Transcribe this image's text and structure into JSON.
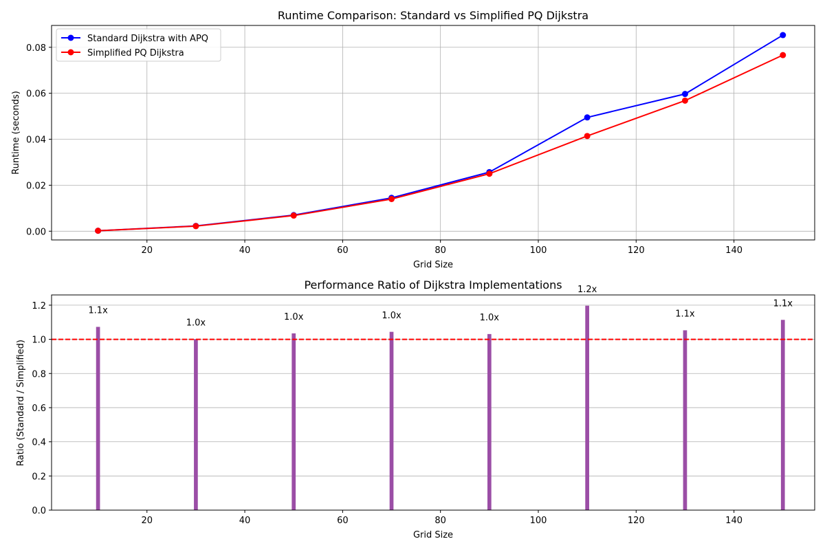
{
  "chart_data": [
    {
      "type": "line",
      "title": "Runtime Comparison: Standard vs Simplified PQ Dijkstra",
      "xlabel": "Grid Size",
      "ylabel": "Runtime (seconds)",
      "x": [
        10,
        30,
        50,
        70,
        90,
        110,
        130,
        150
      ],
      "xlim": [
        0.5,
        156.5
      ],
      "ylim": [
        -0.0038,
        0.0895
      ],
      "xticks": [
        20,
        40,
        60,
        80,
        100,
        120,
        140
      ],
      "yticks": [
        0.0,
        0.02,
        0.04,
        0.06,
        0.08
      ],
      "ytick_labels": [
        "0.00",
        "0.02",
        "0.04",
        "0.06",
        "0.08"
      ],
      "grid": true,
      "legend_position": "upper-left",
      "series": [
        {
          "name": "Standard Dijkstra with APQ",
          "color": "#0000ff",
          "values": [
            0.0002,
            0.0023,
            0.007,
            0.0145,
            0.0257,
            0.0495,
            0.0597,
            0.0853
          ]
        },
        {
          "name": "Simplified PQ Dijkstra",
          "color": "#ff0000",
          "values": [
            0.0002,
            0.0022,
            0.0068,
            0.014,
            0.025,
            0.0414,
            0.0568,
            0.0766
          ]
        }
      ]
    },
    {
      "type": "bar",
      "title": "Performance Ratio of Dijkstra Implementations",
      "xlabel": "Grid Size",
      "ylabel": "Ratio (Standard / Simplified)",
      "x": [
        10,
        30,
        50,
        70,
        90,
        110,
        130,
        150
      ],
      "values": [
        1.073,
        1.001,
        1.035,
        1.044,
        1.031,
        1.197,
        1.053,
        1.114
      ],
      "data_labels": [
        "1.1x",
        "1.0x",
        "1.0x",
        "1.0x",
        "1.0x",
        "1.2x",
        "1.1x",
        "1.1x"
      ],
      "bar_color": "#9b4ea6",
      "bar_width": 0.8,
      "xlim": [
        0.5,
        156.5
      ],
      "ylim": [
        0,
        1.26
      ],
      "xticks": [
        20,
        40,
        60,
        80,
        100,
        120,
        140
      ],
      "yticks": [
        0.0,
        0.2,
        0.4,
        0.6,
        0.8,
        1.0,
        1.2
      ],
      "ytick_labels": [
        "0.0",
        "0.2",
        "0.4",
        "0.6",
        "0.8",
        "1.0",
        "1.2"
      ],
      "reference_line": {
        "y": 1.0,
        "color": "#ff0000",
        "style": "dashed"
      },
      "grid": "y"
    }
  ]
}
